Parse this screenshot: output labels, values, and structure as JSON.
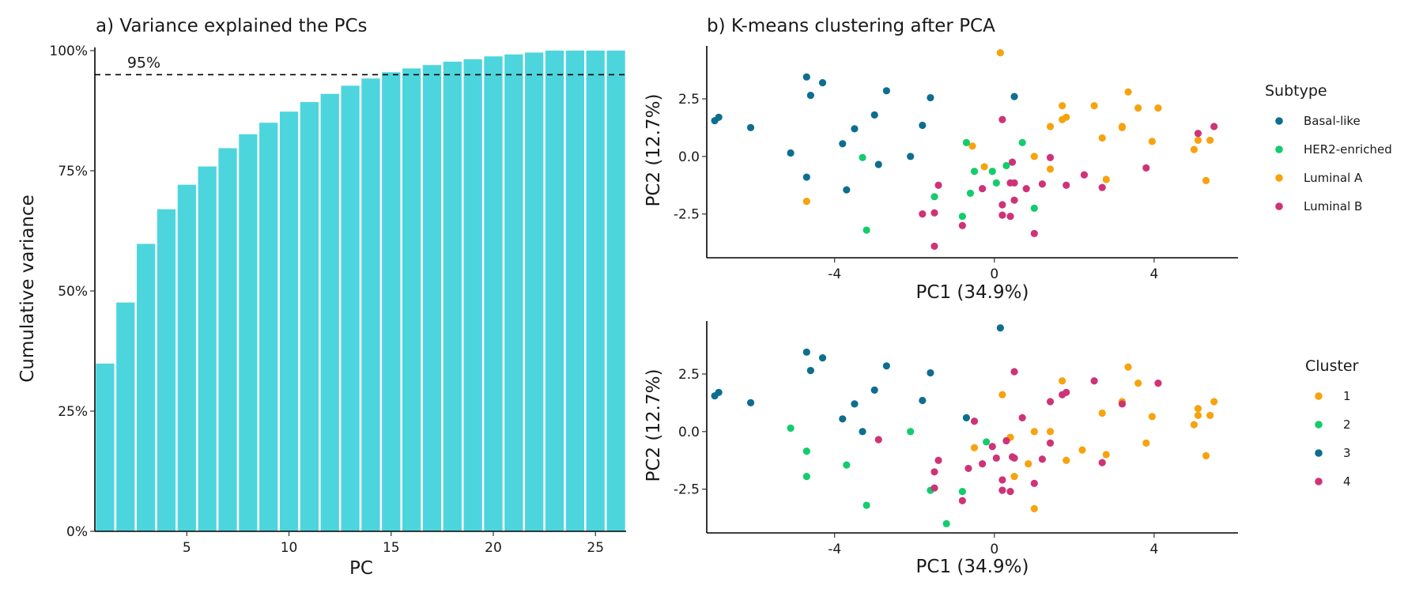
{
  "chart_data": [
    {
      "type": "bar",
      "title": "a) Variance explained the PCs",
      "xlabel": "PC",
      "ylabel": "Cumulative variance",
      "categories": [
        1,
        2,
        3,
        4,
        5,
        6,
        7,
        8,
        9,
        10,
        11,
        12,
        13,
        14,
        15,
        16,
        17,
        18,
        19,
        20,
        21,
        22,
        23,
        24,
        25,
        26
      ],
      "values": [
        0.349,
        0.476,
        0.598,
        0.67,
        0.721,
        0.759,
        0.797,
        0.826,
        0.85,
        0.873,
        0.893,
        0.91,
        0.927,
        0.942,
        0.955,
        0.963,
        0.97,
        0.977,
        0.982,
        0.988,
        0.992,
        0.996,
        1.0,
        1.0,
        1.0,
        1.0
      ],
      "xlim": [
        0.5,
        26.5
      ],
      "ylim": [
        0,
        1
      ],
      "xticks": [
        5,
        10,
        15,
        20,
        25
      ],
      "yticks": [
        {
          "value": 0,
          "label": "0%"
        },
        {
          "value": 0.25,
          "label": "25%"
        },
        {
          "value": 0.5,
          "label": "50%"
        },
        {
          "value": 0.75,
          "label": "75%"
        },
        {
          "value": 1.0,
          "label": "100%"
        }
      ],
      "reference_line": {
        "value": 0.95,
        "label": "95%",
        "style": "dashed"
      },
      "bar_color": "#4DD5DD",
      "grid": false
    },
    {
      "type": "scatter",
      "title": "b) K-means clustering after PCA",
      "xlabel": "PC1 (34.9%)",
      "ylabel": "PC2 (12.7%)",
      "xlim": [
        -7.2,
        6.1
      ],
      "ylim": [
        -4.4,
        4.8
      ],
      "xticks": [
        {
          "value": -4,
          "label": "-4"
        },
        {
          "value": 0,
          "label": "0"
        },
        {
          "value": 4,
          "label": "4"
        }
      ],
      "yticks": [
        {
          "value": -2.5,
          "label": "-2.5"
        },
        {
          "value": 0,
          "label": "0.0"
        },
        {
          "value": 2.5,
          "label": "2.5"
        }
      ],
      "grid": false,
      "legend": {
        "title": "Subtype",
        "position": "right"
      },
      "series": [
        {
          "name": "Basal-like",
          "color": "#0E6E8E",
          "points": [
            [
              -7.0,
              1.55
            ],
            [
              -6.9,
              1.7
            ],
            [
              -6.1,
              1.25
            ],
            [
              -5.1,
              0.15
            ],
            [
              -4.7,
              3.45
            ],
            [
              -4.6,
              2.65
            ],
            [
              -4.3,
              3.2
            ],
            [
              -4.7,
              -0.9
            ],
            [
              -3.8,
              0.55
            ],
            [
              -3.7,
              -1.45
            ],
            [
              -3.5,
              1.2
            ],
            [
              -3.0,
              1.8
            ],
            [
              -2.9,
              -0.35
            ],
            [
              -2.7,
              2.85
            ],
            [
              -2.1,
              0.0
            ],
            [
              -1.8,
              1.35
            ],
            [
              -1.6,
              2.55
            ],
            [
              0.5,
              2.6
            ]
          ]
        },
        {
          "name": "HER2-enriched",
          "color": "#13CC6C",
          "points": [
            [
              -3.3,
              -0.05
            ],
            [
              -3.2,
              -3.2
            ],
            [
              -1.5,
              -1.75
            ],
            [
              -0.8,
              -2.6
            ],
            [
              -0.7,
              0.6
            ],
            [
              -0.6,
              -1.6
            ],
            [
              -0.5,
              -0.65
            ],
            [
              -0.05,
              -0.65
            ],
            [
              0.05,
              -1.15
            ],
            [
              0.7,
              0.6
            ],
            [
              0.3,
              -0.4
            ],
            [
              1.0,
              -2.25
            ]
          ]
        },
        {
          "name": "Luminal A",
          "color": "#F6A30E",
          "points": [
            [
              0.15,
              4.5
            ],
            [
              -0.55,
              0.45
            ],
            [
              -0.25,
              -0.45
            ],
            [
              -4.7,
              -1.95
            ],
            [
              1.0,
              0.0
            ],
            [
              1.4,
              -0.55
            ],
            [
              1.4,
              1.3
            ],
            [
              1.7,
              1.6
            ],
            [
              1.8,
              1.7
            ],
            [
              1.7,
              2.2
            ],
            [
              2.5,
              2.2
            ],
            [
              2.7,
              0.8
            ],
            [
              2.8,
              -1.0
            ],
            [
              3.2,
              1.25
            ],
            [
              3.2,
              1.3
            ],
            [
              3.35,
              2.8
            ],
            [
              3.6,
              2.1
            ],
            [
              3.95,
              0.65
            ],
            [
              4.1,
              2.1
            ],
            [
              5.0,
              0.3
            ],
            [
              5.1,
              0.7
            ],
            [
              5.3,
              -1.05
            ],
            [
              5.4,
              0.7
            ]
          ]
        },
        {
          "name": "Luminal B",
          "color": "#CE3377",
          "points": [
            [
              0.2,
              1.6
            ],
            [
              -1.5,
              -3.9
            ],
            [
              -1.5,
              -2.45
            ],
            [
              -1.8,
              -2.5
            ],
            [
              -1.4,
              -1.25
            ],
            [
              -0.8,
              -3.0
            ],
            [
              -0.3,
              -1.4
            ],
            [
              0.2,
              -2.1
            ],
            [
              0.2,
              -2.55
            ],
            [
              0.4,
              -2.6
            ],
            [
              0.5,
              -1.9
            ],
            [
              0.4,
              -1.15
            ],
            [
              0.45,
              -0.25
            ],
            [
              0.5,
              -1.15
            ],
            [
              0.8,
              -1.4
            ],
            [
              1.0,
              -3.35
            ],
            [
              1.2,
              -1.2
            ],
            [
              1.4,
              -0.05
            ],
            [
              1.8,
              -1.25
            ],
            [
              2.25,
              -0.8
            ],
            [
              2.7,
              -1.35
            ],
            [
              3.8,
              -0.5
            ],
            [
              5.1,
              1.0
            ],
            [
              5.5,
              1.3
            ]
          ]
        }
      ]
    },
    {
      "type": "scatter",
      "xlabel": "PC1 (34.9%)",
      "ylabel": "PC2 (12.7%)",
      "xlim": [
        -7.2,
        6.1
      ],
      "ylim": [
        -4.4,
        4.8
      ],
      "xticks": [
        {
          "value": -4,
          "label": "-4"
        },
        {
          "value": 0,
          "label": "0"
        },
        {
          "value": 4,
          "label": "4"
        }
      ],
      "yticks": [
        {
          "value": -2.5,
          "label": "-2.5"
        },
        {
          "value": 0,
          "label": "0.0"
        },
        {
          "value": 2.5,
          "label": "2.5"
        }
      ],
      "grid": false,
      "legend": {
        "title": "Cluster",
        "position": "right"
      },
      "series": [
        {
          "name": "1",
          "color": "#F6A30E",
          "points": [
            [
              0.2,
              1.6
            ],
            [
              0.4,
              -0.25
            ],
            [
              -0.5,
              -0.7
            ],
            [
              0.5,
              -1.95
            ],
            [
              0.85,
              -1.4
            ],
            [
              1.0,
              0.0
            ],
            [
              1.0,
              -3.35
            ],
            [
              1.4,
              0.0
            ],
            [
              1.7,
              2.2
            ],
            [
              1.8,
              -1.25
            ],
            [
              2.2,
              -0.8
            ],
            [
              2.7,
              0.8
            ],
            [
              2.8,
              -1.0
            ],
            [
              3.2,
              1.3
            ],
            [
              3.35,
              2.8
            ],
            [
              3.6,
              2.1
            ],
            [
              3.8,
              -0.5
            ],
            [
              3.95,
              0.65
            ],
            [
              5.0,
              0.3
            ],
            [
              5.1,
              0.7
            ],
            [
              5.1,
              1.0
            ],
            [
              5.3,
              -1.05
            ],
            [
              5.4,
              0.7
            ],
            [
              5.5,
              1.3
            ]
          ]
        },
        {
          "name": "2",
          "color": "#13CC6C",
          "points": [
            [
              -5.1,
              0.15
            ],
            [
              -4.7,
              -0.85
            ],
            [
              -4.7,
              -1.95
            ],
            [
              -3.7,
              -1.45
            ],
            [
              -3.2,
              -3.2
            ],
            [
              -2.1,
              0.0
            ],
            [
              -1.6,
              -2.55
            ],
            [
              -1.2,
              -4.0
            ],
            [
              -0.8,
              -2.6
            ],
            [
              -0.2,
              -0.45
            ]
          ]
        },
        {
          "name": "3",
          "color": "#0E6E8E",
          "points": [
            [
              -7.0,
              1.55
            ],
            [
              -6.9,
              1.7
            ],
            [
              -6.1,
              1.25
            ],
            [
              -4.7,
              3.45
            ],
            [
              -4.6,
              2.65
            ],
            [
              -4.3,
              3.2
            ],
            [
              -3.8,
              0.55
            ],
            [
              -3.5,
              1.2
            ],
            [
              -3.3,
              0.0
            ],
            [
              -3.0,
              1.8
            ],
            [
              -2.7,
              2.85
            ],
            [
              -1.8,
              1.35
            ],
            [
              -1.6,
              2.55
            ],
            [
              -0.7,
              0.6
            ],
            [
              0.15,
              4.5
            ]
          ]
        },
        {
          "name": "4",
          "color": "#CE3377",
          "points": [
            [
              -2.9,
              -0.35
            ],
            [
              -1.5,
              -2.45
            ],
            [
              -1.5,
              -1.75
            ],
            [
              -1.4,
              -1.25
            ],
            [
              -0.8,
              -3.0
            ],
            [
              -0.65,
              -1.6
            ],
            [
              -0.5,
              0.45
            ],
            [
              -0.3,
              -1.4
            ],
            [
              -0.05,
              -0.65
            ],
            [
              0.05,
              -1.15
            ],
            [
              0.2,
              -2.1
            ],
            [
              0.2,
              -2.55
            ],
            [
              0.3,
              -0.4
            ],
            [
              0.4,
              -2.6
            ],
            [
              0.45,
              -1.1
            ],
            [
              0.5,
              -1.15
            ],
            [
              0.5,
              2.6
            ],
            [
              0.7,
              0.6
            ],
            [
              1.0,
              -2.25
            ],
            [
              1.2,
              -1.2
            ],
            [
              1.4,
              1.3
            ],
            [
              1.4,
              -0.5
            ],
            [
              1.7,
              1.6
            ],
            [
              1.8,
              1.7
            ],
            [
              2.5,
              2.2
            ],
            [
              2.7,
              -1.35
            ],
            [
              3.2,
              1.2
            ],
            [
              4.1,
              2.1
            ]
          ]
        }
      ]
    }
  ]
}
